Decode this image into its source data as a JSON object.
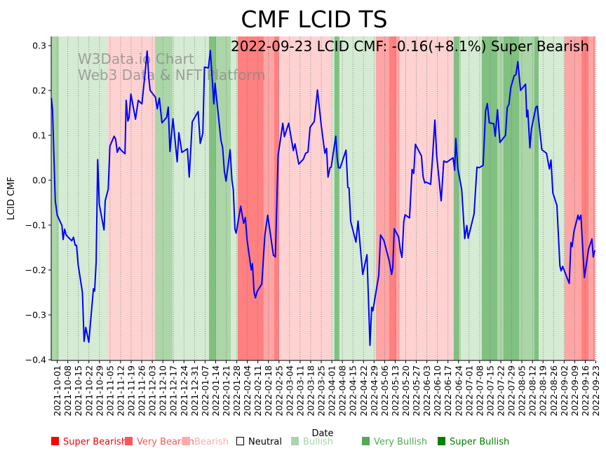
{
  "chart_data": {
    "type": "line",
    "title": "CMF LCID TS",
    "annotation": "2022-09-23 LCID CMF: -0.16(+8.1%) Super Bearish",
    "watermark": [
      "W3Data.io Chart",
      "Web3 Data & NFT Platform"
    ],
    "xlabel": "Date",
    "ylabel": "LCID CMF",
    "ylim": [
      -0.4,
      0.32
    ],
    "yticks": [
      0.3,
      0.2,
      0.1,
      0.0,
      -0.1,
      -0.2,
      -0.3,
      -0.4
    ],
    "ytick_labels": [
      "0.3",
      "0.2",
      "0.1",
      "0.0",
      "−0.1",
      "−0.2",
      "−0.3",
      "−0.4"
    ],
    "x_origin": "2021-10-01",
    "x_unit": "days since 2021-10-01",
    "xlim": [
      -4,
      356.3
    ],
    "xtick_labels": [
      "2021-10-01",
      "2021-10-08",
      "2021-10-15",
      "2021-10-22",
      "2021-10-29",
      "2021-11-05",
      "2021-11-12",
      "2021-11-19",
      "2021-11-26",
      "2021-12-03",
      "2021-12-10",
      "2021-12-17",
      "2021-12-24",
      "2021-12-31",
      "2022-01-07",
      "2022-01-14",
      "2022-01-21",
      "2022-01-28",
      "2022-02-04",
      "2022-02-11",
      "2022-02-18",
      "2022-02-25",
      "2022-03-04",
      "2022-03-11",
      "2022-03-18",
      "2022-03-25",
      "2022-04-01",
      "2022-04-08",
      "2022-04-15",
      "2022-04-22",
      "2022-04-29",
      "2022-05-06",
      "2022-05-13",
      "2022-05-20",
      "2022-05-27",
      "2022-06-03",
      "2022-06-10",
      "2022-06-17",
      "2022-06-24",
      "2022-07-01",
      "2022-07-08",
      "2022-07-15",
      "2022-07-22",
      "2022-07-29",
      "2022-08-05",
      "2022-08-12",
      "2022-08-19",
      "2022-08-26",
      "2022-09-02",
      "2022-09-09",
      "2022-09-16",
      "2022-09-23"
    ],
    "grid": "vertical dotted at weekly ticks",
    "line_color": "#0000ff",
    "series": [
      {
        "name": "LCID CMF",
        "points": [
          [
            -3.9,
            0.183
          ],
          [
            -3.1,
            0.157
          ],
          [
            -1.3,
            -0.046
          ],
          [
            0,
            -0.078
          ],
          [
            3.1,
            -0.101
          ],
          [
            3.9,
            -0.132
          ],
          [
            4.9,
            -0.109
          ],
          [
            5.9,
            -0.122
          ],
          [
            9.6,
            -0.135
          ],
          [
            10.8,
            -0.127
          ],
          [
            11.9,
            -0.145
          ],
          [
            12.8,
            -0.145
          ],
          [
            13.9,
            -0.189
          ],
          [
            16.7,
            -0.25
          ],
          [
            17.8,
            -0.359
          ],
          [
            18.9,
            -0.328
          ],
          [
            20.9,
            -0.361
          ],
          [
            24.0,
            -0.242
          ],
          [
            24.8,
            -0.247
          ],
          [
            25.8,
            -0.182
          ],
          [
            26.8,
            0.046
          ],
          [
            27.9,
            -0.054
          ],
          [
            31.0,
            -0.111
          ],
          [
            31.8,
            -0.046
          ],
          [
            33.8,
            -0.02
          ],
          [
            34.9,
            0.076
          ],
          [
            37.7,
            0.098
          ],
          [
            38.7,
            0.092
          ],
          [
            39.8,
            0.062
          ],
          [
            41.1,
            0.073
          ],
          [
            42.3,
            0.067
          ],
          [
            44.9,
            0.059
          ],
          [
            45.7,
            0.178
          ],
          [
            46.8,
            0.132
          ],
          [
            47.6,
            0.139
          ],
          [
            48.8,
            0.192
          ],
          [
            51.9,
            0.136
          ],
          [
            53.7,
            0.178
          ],
          [
            56.1,
            0.17
          ],
          [
            58.1,
            0.235
          ],
          [
            59.6,
            0.288
          ],
          [
            60.7,
            0.227
          ],
          [
            61.6,
            0.2
          ],
          [
            65.1,
            0.185
          ],
          [
            66.3,
            0.159
          ],
          [
            67.7,
            0.183
          ],
          [
            69.4,
            0.128
          ],
          [
            72.5,
            0.14
          ],
          [
            73.6,
            0.163
          ],
          [
            74.7,
            0.064
          ],
          [
            76.7,
            0.137
          ],
          [
            79.5,
            0.041
          ],
          [
            80.6,
            0.106
          ],
          [
            82.6,
            0.062
          ],
          [
            86.3,
            0.07
          ],
          [
            87.5,
            0.007
          ],
          [
            89.5,
            0.13
          ],
          [
            93.4,
            0.153
          ],
          [
            94.8,
            0.082
          ],
          [
            96.5,
            0.105
          ],
          [
            97.6,
            0.252
          ],
          [
            100.2,
            0.25
          ],
          [
            101.5,
            0.289
          ],
          [
            103.8,
            0.17
          ],
          [
            104.6,
            0.216
          ],
          [
            108.5,
            0.089
          ],
          [
            109.6,
            0.073
          ],
          [
            110.8,
            0.02
          ],
          [
            111.9,
            -0.002
          ],
          [
            114.6,
            0.068
          ],
          [
            115.8,
            0.0
          ],
          [
            116.7,
            -0.02
          ],
          [
            117.8,
            -0.109
          ],
          [
            118.6,
            -0.118
          ],
          [
            121.6,
            -0.058
          ],
          [
            123.5,
            -0.096
          ],
          [
            124.7,
            -0.083
          ],
          [
            125.8,
            -0.132
          ],
          [
            128.6,
            -0.2
          ],
          [
            129.4,
            -0.186
          ],
          [
            130.5,
            -0.25
          ],
          [
            131.4,
            -0.262
          ],
          [
            132.5,
            -0.248
          ],
          [
            135.6,
            -0.231
          ],
          [
            137.6,
            -0.123
          ],
          [
            139.5,
            -0.078
          ],
          [
            143.3,
            -0.167
          ],
          [
            144.6,
            -0.171
          ],
          [
            146.4,
            0.055
          ],
          [
            149.5,
            0.127
          ],
          [
            150.6,
            0.097
          ],
          [
            153.4,
            0.127
          ],
          [
            156.5,
            0.066
          ],
          [
            157.6,
            0.081
          ],
          [
            160.1,
            0.036
          ],
          [
            163.2,
            0.047
          ],
          [
            164.6,
            0.06
          ],
          [
            166.2,
            0.063
          ],
          [
            167.6,
            0.118
          ],
          [
            170.4,
            0.131
          ],
          [
            172.5,
            0.201
          ],
          [
            175.1,
            0.12
          ],
          [
            177.4,
            0.06
          ],
          [
            178.5,
            0.071
          ],
          [
            179.5,
            0.007
          ],
          [
            180.8,
            0.028
          ],
          [
            181.6,
            0.029
          ],
          [
            184.6,
            0.098
          ],
          [
            185.6,
            0.05
          ],
          [
            186.4,
            0.028
          ],
          [
            187.5,
            0.027
          ],
          [
            191.4,
            0.067
          ],
          [
            192.6,
            -0.016
          ],
          [
            193.4,
            -0.017
          ],
          [
            194.5,
            -0.092
          ],
          [
            198.0,
            -0.138
          ],
          [
            199.4,
            -0.091
          ],
          [
            201.4,
            -0.169
          ],
          [
            202.5,
            -0.21
          ],
          [
            205.3,
            -0.166
          ],
          [
            207.3,
            -0.368
          ],
          [
            208.4,
            -0.283
          ],
          [
            209.2,
            -0.291
          ],
          [
            213.1,
            -0.212
          ],
          [
            214.3,
            -0.122
          ],
          [
            216.5,
            -0.134
          ],
          [
            220.0,
            -0.179
          ],
          [
            221.6,
            -0.21
          ],
          [
            222.4,
            -0.195
          ],
          [
            223.4,
            -0.108
          ],
          [
            226.2,
            -0.126
          ],
          [
            227.5,
            -0.158
          ],
          [
            228.5,
            -0.172
          ],
          [
            229.7,
            -0.092
          ],
          [
            230.6,
            -0.077
          ],
          [
            233.5,
            -0.084
          ],
          [
            235.2,
            0.024
          ],
          [
            236.3,
            0.015
          ],
          [
            237.4,
            0.08
          ],
          [
            241.4,
            0.054
          ],
          [
            242.5,
            0.008
          ],
          [
            243.6,
            -0.006
          ],
          [
            244.5,
            -0.004
          ],
          [
            247.5,
            -0.009
          ],
          [
            248.7,
            0.048
          ],
          [
            250.3,
            0.134
          ],
          [
            251.5,
            0.055
          ],
          [
            254.5,
            -0.046
          ],
          [
            256.2,
            0.043
          ],
          [
            258.0,
            0.04
          ],
          [
            262.4,
            0.05
          ],
          [
            263.4,
            0.022
          ],
          [
            264.2,
            0.093
          ],
          [
            265.5,
            0.027
          ],
          [
            268.1,
            -0.021
          ],
          [
            270.1,
            -0.13
          ],
          [
            271.5,
            -0.101
          ],
          [
            272.4,
            -0.129
          ],
          [
            276.3,
            -0.075
          ],
          [
            278.2,
            0.029
          ],
          [
            279.7,
            0.028
          ],
          [
            282.3,
            0.033
          ],
          [
            283.9,
            0.154
          ],
          [
            285.1,
            0.171
          ],
          [
            286.4,
            0.128
          ],
          [
            289.3,
            0.126
          ],
          [
            290.3,
            0.098
          ],
          [
            291.8,
            0.157
          ],
          [
            293.4,
            0.084
          ],
          [
            297.1,
            0.1
          ],
          [
            298.3,
            0.162
          ],
          [
            299.4,
            0.169
          ],
          [
            300.6,
            0.206
          ],
          [
            302.9,
            0.233
          ],
          [
            304.0,
            0.235
          ],
          [
            305.3,
            0.264
          ],
          [
            307.1,
            0.2
          ],
          [
            310.4,
            0.214
          ],
          [
            311.2,
            0.141
          ],
          [
            311.9,
            0.156
          ],
          [
            313.3,
            0.072
          ],
          [
            314.3,
            0.114
          ],
          [
            317.2,
            0.162
          ],
          [
            318.2,
            0.165
          ],
          [
            321.2,
            0.068
          ],
          [
            324.3,
            0.06
          ],
          [
            326.2,
            0.025
          ],
          [
            327.3,
            0.045
          ],
          [
            328.5,
            -0.028
          ],
          [
            331.2,
            -0.056
          ],
          [
            333.2,
            -0.191
          ],
          [
            334.0,
            -0.202
          ],
          [
            335.0,
            -0.192
          ],
          [
            339.4,
            -0.23
          ],
          [
            340.5,
            -0.139
          ],
          [
            341.3,
            -0.148
          ],
          [
            342.5,
            -0.114
          ],
          [
            345.2,
            -0.078
          ],
          [
            346.0,
            -0.088
          ],
          [
            347.1,
            -0.078
          ],
          [
            349.4,
            -0.217
          ],
          [
            352.2,
            -0.153
          ],
          [
            354.4,
            -0.131
          ],
          [
            355.3,
            -0.171
          ],
          [
            356.3,
            -0.156
          ]
        ]
      }
    ],
    "bands": [
      [
        -4,
        1.1,
        "very_bullish"
      ],
      [
        1.1,
        33.6,
        "bullish"
      ],
      [
        33.6,
        64.8,
        "bearish"
      ],
      [
        64.8,
        76.4,
        "very_bullish"
      ],
      [
        76.4,
        100.6,
        "bullish"
      ],
      [
        100.6,
        105.2,
        "super_bullish"
      ],
      [
        105.2,
        115,
        "very_bullish"
      ],
      [
        115,
        119.6,
        "bullish"
      ],
      [
        119.6,
        136.8,
        "super_bearish"
      ],
      [
        136.8,
        143.8,
        "very_bearish"
      ],
      [
        143.8,
        147,
        "super_bearish"
      ],
      [
        147,
        181.9,
        "bearish"
      ],
      [
        181.9,
        183.7,
        "bullish"
      ],
      [
        183.7,
        187,
        "super_bullish"
      ],
      [
        187,
        211.2,
        "bullish"
      ],
      [
        211.2,
        220,
        "very_bearish"
      ],
      [
        220,
        224.7,
        "super_bearish"
      ],
      [
        224.7,
        227,
        "very_bearish"
      ],
      [
        227,
        262.8,
        "bearish"
      ],
      [
        262.8,
        266.1,
        "super_bullish"
      ],
      [
        266.1,
        267.5,
        "very_bullish"
      ],
      [
        267.5,
        281.4,
        "bullish"
      ],
      [
        281.4,
        291.7,
        "super_bullish"
      ],
      [
        291.7,
        295.8,
        "very_bullish"
      ],
      [
        295.8,
        306.1,
        "super_bullish"
      ],
      [
        306.1,
        316.3,
        "very_bullish"
      ],
      [
        316.3,
        319.1,
        "super_bullish"
      ],
      [
        319.1,
        336.3,
        "bullish"
      ],
      [
        336.3,
        347.5,
        "very_bearish"
      ],
      [
        347.5,
        352.1,
        "super_bearish"
      ],
      [
        352.1,
        355.4,
        "very_bearish"
      ],
      [
        355.4,
        356.3,
        "super_bearish"
      ]
    ],
    "band_colors": {
      "super_bearish": "#ff8080",
      "very_bearish": "#ffa5a5",
      "bearish": "#ffd2d2",
      "bullish": "#d5ebd3",
      "very_bullish": "#acd6a8",
      "super_bullish": "#80c080"
    },
    "legend": [
      {
        "label": "Super Bearish",
        "color": "#ff0000",
        "text_color": "#ff0000",
        "marker": "filled"
      },
      {
        "label": "Very Bearish",
        "color": "#ff5555",
        "text_color": "#ff5555",
        "marker": "filled"
      },
      {
        "label": "Bearish",
        "color": "#ffaaaa",
        "text_color": "#ffaaaa",
        "marker": "filled"
      },
      {
        "label": "Neutral",
        "color": "#000000",
        "text_color": "#000000",
        "marker": "hollow"
      },
      {
        "label": "Bullish",
        "color": "#aad4aa",
        "text_color": "#aad4aa",
        "marker": "filled"
      },
      {
        "label": "Very Bullish",
        "color": "#55aa55",
        "text_color": "#55aa55",
        "marker": "filled"
      },
      {
        "label": "Super Bullish",
        "color": "#008000",
        "text_color": "#008000",
        "marker": "filled"
      }
    ],
    "legend_placement": "bottom"
  }
}
